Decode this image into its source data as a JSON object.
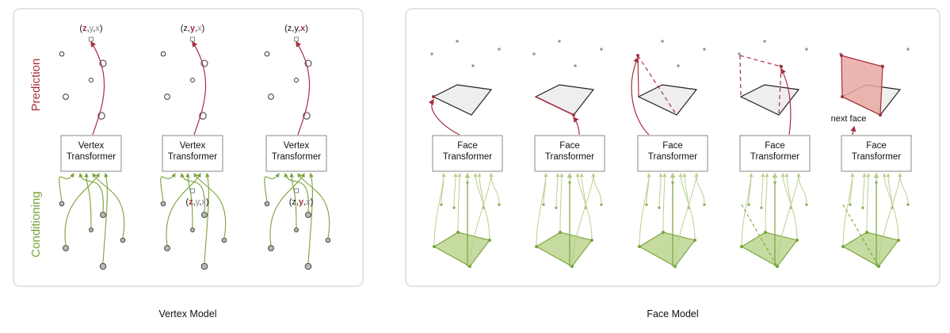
{
  "colors": {
    "prediction": "#a6303f",
    "conditioning": "#7aa33a",
    "conditioning_light": "#b9d08f",
    "face_fill_green": "#c5dba0",
    "face_fill_red": "#e7a9a2",
    "face_fill_gray": "#eeeeee"
  },
  "side_labels": {
    "prediction": "Prediction",
    "conditioning": "Conditioning"
  },
  "vertex_model": {
    "caption": "Vertex Model",
    "box_line1": "Vertex",
    "box_line2": "Transformer",
    "coord_open": "(",
    "coord_z": "z",
    "coord_comma1": ",",
    "coord_y": "y",
    "coord_comma2": ",",
    "coord_x": "x",
    "coord_close": ")"
  },
  "face_model": {
    "caption": "Face Model",
    "box_line1": "Face",
    "box_line2": "Transformer",
    "next_face_label": "next face"
  }
}
